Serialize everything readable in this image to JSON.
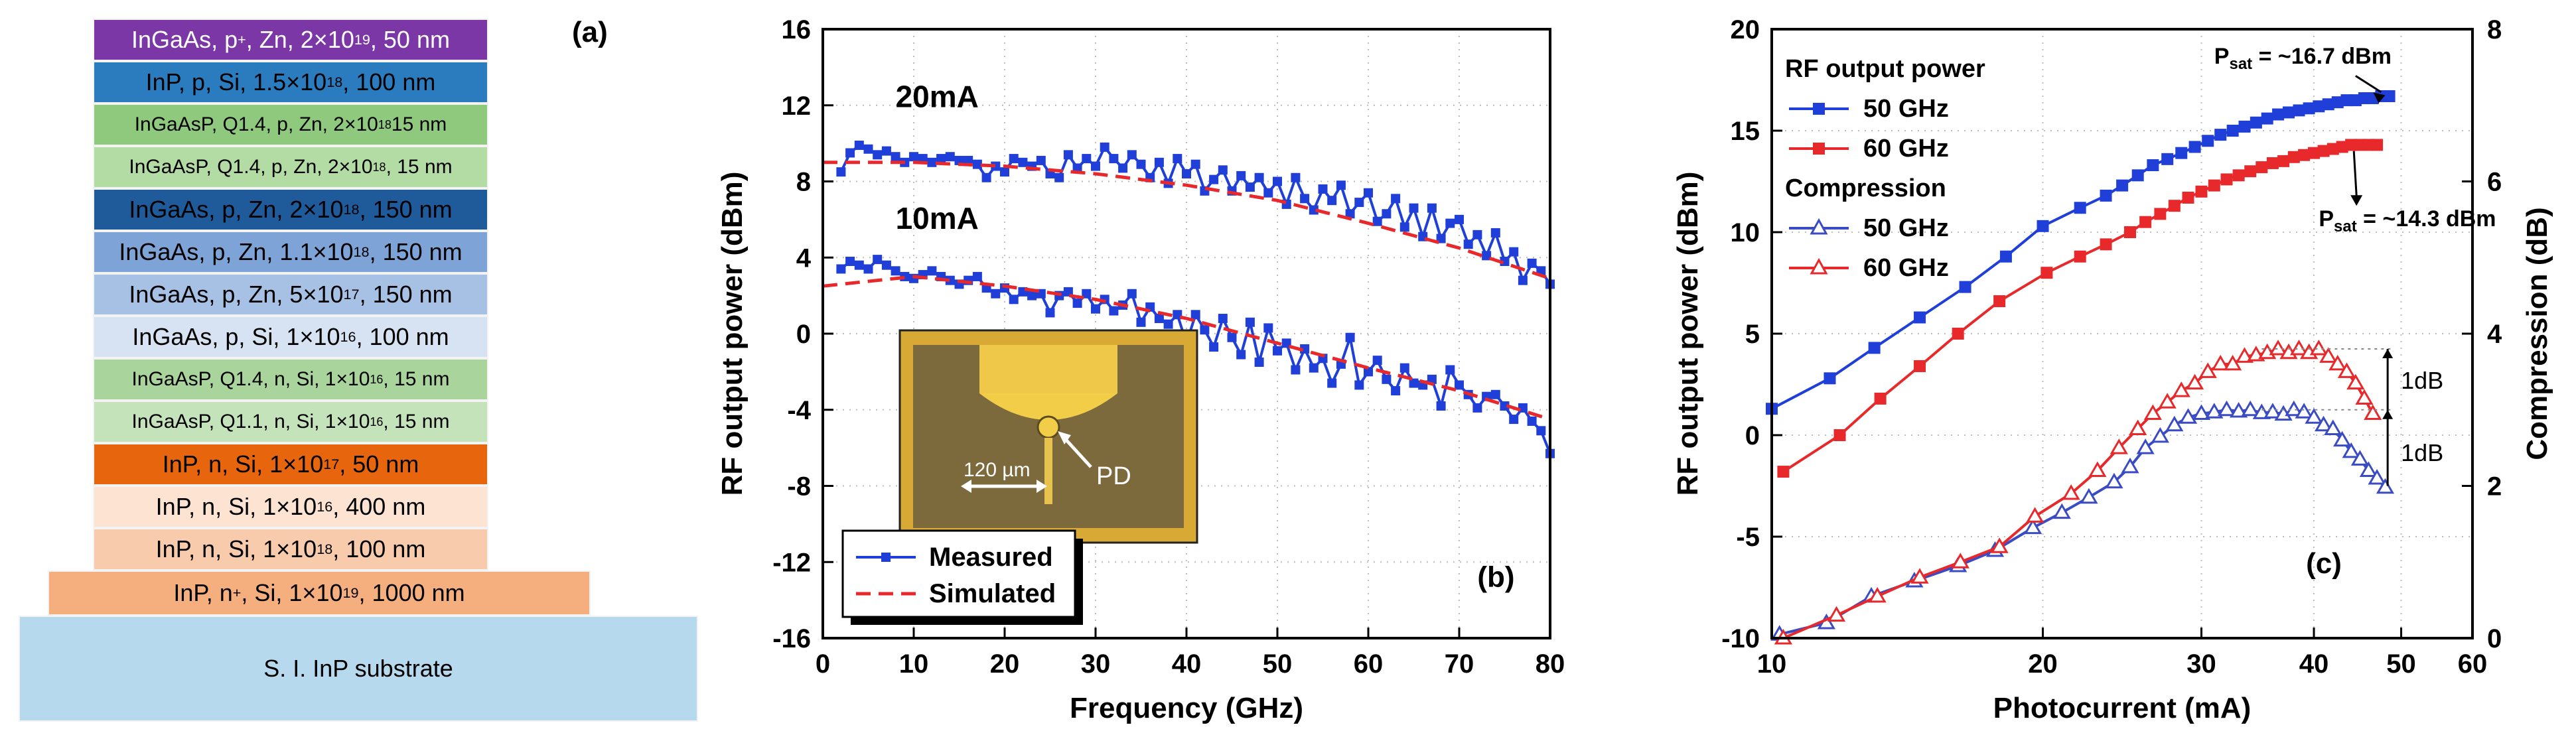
{
  "panel_a": {
    "label": "(a)",
    "layers": [
      {
        "text_html": "InGaAs, p<sup>+</sup>, Zn, 2×10<sup>19</sup>, 50 nm",
        "color": "#7b37a6",
        "text_color": "#ffffff"
      },
      {
        "text_html": "InP, p, Si, 1.5×10<sup>18</sup>, 100 nm",
        "color": "#2b7bbf",
        "text_color": "#000000"
      },
      {
        "text_html": "InGaAsP, Q1.4, p, Zn, 2×10<sup>18</sup> 15 nm",
        "color": "#8fc97e",
        "text_color": "#000000"
      },
      {
        "text_html": "InGaAsP, Q1.4, p, Zn, 2×10<sup>18</sup>, 15 nm",
        "color": "#b3dba4",
        "text_color": "#000000"
      },
      {
        "text_html": "InGaAs, p, Zn, 2×10<sup>18</sup>, 150 nm",
        "color": "#1f5a9a",
        "text_color": "#000000"
      },
      {
        "text_html": "InGaAs, p, Zn, 1.1×10<sup>18</sup>, 150 nm",
        "color": "#7ea3d6",
        "text_color": "#000000"
      },
      {
        "text_html": "InGaAs, p, Zn, 5×10<sup>17</sup>, 150 nm",
        "color": "#a7c1e5",
        "text_color": "#000000"
      },
      {
        "text_html": "InGaAs, p, Si, 1×10<sup>16</sup>, 100 nm",
        "color": "#d7e3f3",
        "text_color": "#000000"
      },
      {
        "text_html": "InGaAsP, Q1.4, n, Si, 1×10<sup>16</sup>, 15 nm",
        "color": "#a9d59c",
        "text_color": "#000000"
      },
      {
        "text_html": "InGaAsP, Q1.1, n, Si, 1×10<sup>16</sup>, 15 nm",
        "color": "#c5e3ba",
        "text_color": "#000000"
      },
      {
        "text_html": "InP, n, Si, 1×10<sup>17</sup>, 50 nm",
        "color": "#e6650d",
        "text_color": "#000000"
      },
      {
        "text_html": "InP, n, Si, 1×10<sup>16</sup>, 400 nm",
        "color": "#fce3d2",
        "text_color": "#000000"
      },
      {
        "text_html": "InP, n, Si, 1×10<sup>18</sup>, 100 nm",
        "color": "#f9cbad",
        "text_color": "#000000"
      },
      {
        "text_html": "InP, n<sup>+</sup>, Si, 1×10<sup>19</sup>, 1000 nm",
        "color": "#f5ae7e",
        "text_color": "#000000"
      },
      {
        "text_html": "S. I. InP substrate",
        "color": "#b7d9ee",
        "text_color": "#000000"
      }
    ]
  },
  "chart_data": [
    {
      "type": "line",
      "panel": "(b)",
      "xlabel": "Frequency (GHz)",
      "ylabel": "RF output power (dBm)",
      "xlim": [
        0,
        80
      ],
      "ylim": [
        -16,
        16
      ],
      "xticks": [
        0,
        10,
        20,
        30,
        40,
        50,
        60,
        70,
        80
      ],
      "yticks": [
        -16,
        -12,
        -8,
        -4,
        0,
        4,
        8,
        12,
        16
      ],
      "x_tick_labels": [
        "0",
        "10",
        "20",
        "30",
        "40",
        "50",
        "60",
        "70",
        "80"
      ],
      "y_tick_labels": [
        "-16",
        "-12",
        "-8",
        "-4",
        "0",
        "4",
        "8",
        "12",
        "16"
      ],
      "legend": {
        "position": "bottom-left",
        "entries": [
          "Measured",
          "Simulated"
        ]
      },
      "annotations": [
        "20mA",
        "10mA",
        "120 µm",
        "PD"
      ],
      "series": [
        {
          "name": "Measured 20mA",
          "color": "#1f3fd8",
          "x": [
            2,
            3,
            4,
            5,
            6,
            7,
            8,
            9,
            10,
            11,
            12,
            13,
            14,
            15,
            16,
            17,
            18,
            19,
            20,
            21,
            22,
            23,
            24,
            25,
            26,
            27,
            28,
            29,
            30,
            31,
            32,
            33,
            34,
            35,
            36,
            37,
            38,
            39,
            40,
            41,
            42,
            43,
            44,
            45,
            46,
            47,
            48,
            49,
            50,
            51,
            52,
            53,
            54,
            55,
            56,
            57,
            58,
            59,
            60,
            61,
            62,
            63,
            64,
            65,
            66,
            67,
            68,
            69,
            70,
            71,
            72,
            73,
            74,
            75,
            76,
            77,
            78,
            79,
            80
          ],
          "y": [
            8.5,
            9.5,
            9.9,
            9.7,
            9.4,
            9.6,
            9.3,
            9.0,
            9.3,
            9.2,
            9.0,
            9.2,
            9.3,
            9.1,
            9.1,
            8.9,
            8.2,
            8.8,
            8.5,
            9.2,
            9.0,
            8.8,
            9.1,
            8.4,
            8.2,
            9.4,
            8.7,
            9.2,
            8.8,
            9.8,
            9.2,
            8.7,
            9.4,
            8.9,
            8.2,
            9.0,
            7.9,
            9.2,
            8.4,
            8.9,
            7.5,
            8.1,
            8.6,
            7.5,
            8.3,
            7.7,
            8.2,
            7.4,
            8.0,
            6.8,
            8.2,
            7.1,
            6.5,
            7.6,
            7.0,
            7.8,
            6.3,
            6.9,
            7.4,
            5.9,
            6.3,
            7.1,
            5.6,
            6.6,
            5.1,
            6.6,
            5.0,
            5.8,
            6.0,
            4.7,
            5.2,
            4.1,
            5.3,
            3.8,
            4.3,
            2.8,
            3.7,
            3.3,
            2.6
          ]
        },
        {
          "name": "Measured 10mA",
          "color": "#1f3fd8",
          "x": [
            2,
            3,
            4,
            5,
            6,
            7,
            8,
            9,
            10,
            11,
            12,
            13,
            14,
            15,
            16,
            17,
            18,
            19,
            20,
            21,
            22,
            23,
            24,
            25,
            26,
            27,
            28,
            29,
            30,
            31,
            32,
            33,
            34,
            35,
            36,
            37,
            38,
            39,
            40,
            41,
            42,
            43,
            44,
            45,
            46,
            47,
            48,
            49,
            50,
            51,
            52,
            53,
            54,
            55,
            56,
            57,
            58,
            59,
            60,
            61,
            62,
            63,
            64,
            65,
            66,
            67,
            68,
            69,
            70,
            71,
            72,
            73,
            74,
            75,
            76,
            77,
            78,
            79,
            80
          ],
          "y": [
            3.4,
            3.8,
            3.6,
            3.4,
            3.9,
            3.6,
            3.3,
            3.0,
            2.9,
            3.1,
            3.3,
            3.0,
            2.8,
            2.6,
            2.8,
            3.0,
            2.4,
            2.1,
            2.4,
            1.8,
            2.2,
            2.0,
            2.1,
            1.1,
            2.0,
            2.2,
            1.6,
            2.1,
            1.3,
            1.8,
            1.2,
            1.5,
            2.1,
            0.6,
            1.4,
            0.8,
            0.5,
            1.0,
            -0.5,
            1.0,
            0.2,
            -0.7,
            0.8,
            -0.2,
            -1.1,
            0.6,
            -1.5,
            0.3,
            -0.9,
            -0.5,
            -1.9,
            -0.8,
            -1.8,
            -1.3,
            -2.6,
            -1.6,
            -0.2,
            -2.7,
            -2.0,
            -1.4,
            -2.4,
            -3.0,
            -1.8,
            -2.6,
            -2.7,
            -2.4,
            -3.8,
            -1.9,
            -2.7,
            -3.2,
            -3.9,
            -3.3,
            -3.2,
            -3.8,
            -4.5,
            -3.9,
            -4.6,
            -5.1,
            -6.3
          ]
        },
        {
          "name": "Simulated 20mA",
          "color": "#e8292b",
          "dash": true,
          "x": [
            0,
            10,
            20,
            30,
            40,
            50,
            60,
            70,
            80
          ],
          "y": [
            9.0,
            9.0,
            8.8,
            8.4,
            7.8,
            7.0,
            5.8,
            4.5,
            2.9
          ]
        },
        {
          "name": "Simulated 10mA",
          "color": "#e8292b",
          "dash": true,
          "x": [
            0,
            10,
            20,
            30,
            40,
            50,
            60,
            70,
            80
          ],
          "y": [
            2.5,
            3.0,
            2.5,
            1.8,
            0.8,
            -0.5,
            -1.8,
            -3.0,
            -4.5
          ]
        }
      ]
    },
    {
      "type": "line",
      "panel": "(c)",
      "xlabel": "Photocurrent (mA)",
      "ylabel": "RF output power (dBm)",
      "y2label": "Compression (dB)",
      "xscale": "log",
      "xlim": [
        10,
        60
      ],
      "ylim": [
        -10,
        20
      ],
      "y2lim": [
        0,
        8
      ],
      "xticks": [
        10,
        20,
        30,
        40,
        50,
        60
      ],
      "yticks": [
        -10,
        -5,
        0,
        5,
        10,
        15,
        20
      ],
      "y2ticks": [
        0,
        2,
        4,
        6,
        8
      ],
      "x_tick_labels": [
        "10",
        "20",
        "30",
        "40",
        "50",
        "60"
      ],
      "y_tick_labels": [
        "-10",
        "-5",
        "0",
        "5",
        "10",
        "15",
        "20"
      ],
      "y2_tick_labels": [
        "0",
        "2",
        "4",
        "6",
        "8"
      ],
      "legend": {
        "position": "top-left",
        "group1": "RF output power",
        "group2": "Compression",
        "entries": [
          "50 GHz",
          "60 GHz",
          "50 GHz",
          "60 GHz"
        ]
      },
      "annotations": {
        "psat1_prefix": "P",
        "psat1_sub": "sat",
        "psat1_rest": " = ~16.7 dBm",
        "psat2_prefix": "P",
        "psat2_sub": "sat",
        "psat2_rest": " = ~14.3 dBm",
        "db1": "1dB",
        "db2": "1dB"
      },
      "series": [
        {
          "name": "50 GHz RF",
          "axis": "left",
          "color": "#1f3fd8",
          "marker": "square-filled",
          "x": [
            10,
            11.6,
            13,
            14.6,
            16.4,
            18.2,
            20,
            22,
            23.5,
            24.5,
            25.5,
            26.5,
            27.5,
            28.5,
            29.5,
            30.5,
            31.5,
            32.5,
            33.5,
            34.5,
            35.5,
            36.5,
            37.5,
            38.5,
            39.5,
            40.5,
            41.5,
            42.5,
            43.5,
            44.5,
            45.5,
            46.5,
            47.5,
            48.5
          ],
          "y": [
            1.3,
            2.8,
            4.3,
            5.8,
            7.3,
            8.8,
            10.3,
            11.2,
            11.8,
            12.3,
            12.8,
            13.3,
            13.6,
            13.9,
            14.2,
            14.5,
            14.8,
            15.0,
            15.2,
            15.4,
            15.6,
            15.8,
            15.9,
            16.0,
            16.1,
            16.2,
            16.3,
            16.4,
            16.5,
            16.5,
            16.6,
            16.6,
            16.7,
            16.7
          ]
        },
        {
          "name": "60 GHz RF",
          "axis": "left",
          "color": "#e8292b",
          "marker": "square-filled",
          "x": [
            10.3,
            11.9,
            13.2,
            14.6,
            16.1,
            17.9,
            20.2,
            22,
            23.5,
            25,
            26,
            27,
            28,
            29,
            30,
            31,
            32,
            33,
            34,
            35,
            36,
            37,
            38,
            39,
            40,
            41,
            42,
            43,
            44,
            45,
            46,
            47
          ],
          "y": [
            -1.8,
            0.0,
            1.8,
            3.4,
            5.0,
            6.6,
            8.0,
            8.8,
            9.4,
            10.0,
            10.5,
            10.9,
            11.3,
            11.7,
            12.0,
            12.3,
            12.6,
            12.8,
            13.0,
            13.2,
            13.4,
            13.5,
            13.7,
            13.8,
            13.9,
            14.0,
            14.1,
            14.2,
            14.3,
            14.3,
            14.3,
            14.3
          ]
        },
        {
          "name": "50 GHz Compression",
          "axis": "right",
          "color": "#3a4bc4",
          "marker": "triangle-open",
          "x": [
            10.2,
            11.5,
            12.9,
            14.4,
            16.1,
            17.7,
            19.5,
            21,
            22.5,
            24,
            25,
            26,
            27,
            28,
            29,
            30,
            31,
            32,
            33,
            34,
            35,
            36,
            37,
            38,
            39,
            40,
            41,
            42,
            43,
            44,
            45,
            46,
            47,
            48
          ],
          "y": [
            0.05,
            0.2,
            0.55,
            0.75,
            0.95,
            1.15,
            1.45,
            1.65,
            1.85,
            2.05,
            2.25,
            2.5,
            2.65,
            2.8,
            2.9,
            2.95,
            2.97,
            3.0,
            2.98,
            3.0,
            2.96,
            2.97,
            2.94,
            3.0,
            2.97,
            2.9,
            2.8,
            2.75,
            2.6,
            2.45,
            2.35,
            2.2,
            2.1,
            1.98
          ]
        },
        {
          "name": "60 GHz Compression",
          "axis": "right",
          "color": "#e8292b",
          "marker": "triangle-open",
          "x": [
            10.3,
            11.8,
            13.1,
            14.6,
            16.2,
            17.9,
            19.6,
            21.5,
            23,
            24.3,
            25.5,
            26.5,
            27.5,
            28.5,
            29.5,
            30.5,
            31.5,
            32.5,
            33.5,
            34.5,
            35.5,
            36.5,
            37.5,
            38.5,
            39.5,
            40.5,
            41.5,
            42.5,
            43.5,
            44.5,
            45.5,
            46.5
          ],
          "y": [
            0.0,
            0.3,
            0.55,
            0.8,
            1.0,
            1.2,
            1.6,
            1.9,
            2.2,
            2.5,
            2.75,
            2.95,
            3.1,
            3.25,
            3.35,
            3.5,
            3.6,
            3.6,
            3.7,
            3.72,
            3.75,
            3.8,
            3.75,
            3.8,
            3.75,
            3.8,
            3.7,
            3.6,
            3.5,
            3.35,
            3.15,
            2.95
          ]
        }
      ]
    }
  ]
}
